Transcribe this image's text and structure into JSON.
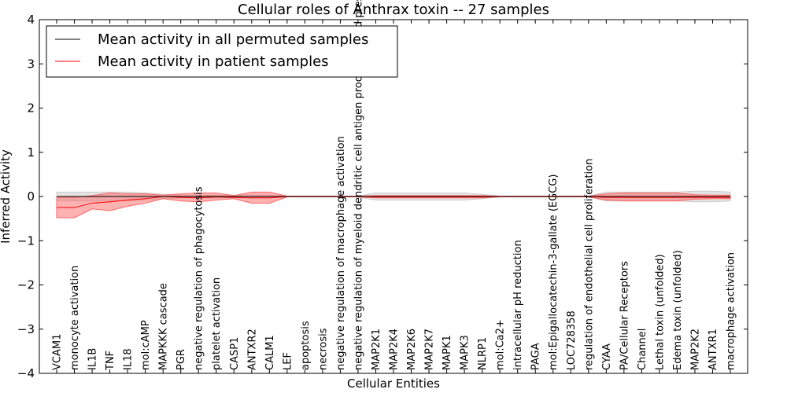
{
  "chart_data": {
    "type": "line",
    "title": "Cellular roles of Anthrax toxin -- 27 samples",
    "xlabel": "Cellular Entities",
    "ylabel": "Inferred Activity",
    "ylim": [
      -4,
      4
    ],
    "yticks": [
      "−4",
      "−3",
      "−2",
      "−1",
      "0",
      "1",
      "2",
      "3",
      "4"
    ],
    "grid": false,
    "legend_position": "top-left",
    "categories": [
      "VCAM1",
      "monocyte activation",
      "IL1B",
      "TNF",
      "IL18",
      "mol:cAMP",
      "MAPKKK cascade",
      "PGR",
      "negative regulation of phagocytosis",
      "platelet activation",
      "CASP1",
      "ANTXR2",
      "CALM1",
      "LEF",
      "apoptosis",
      "necrosis",
      "negative regulation of macrophage activation",
      "negative regulation of myeloid dendritic cell antigen processing and presentation",
      "MAP2K1",
      "MAP2K4",
      "MAP2K6",
      "MAP2K7",
      "MAPK1",
      "MAPK3",
      "NLRP1",
      "mol:Ca2+",
      "intracellular pH reduction",
      "PAGA",
      "mol:Epigallocatechin-3-gallate (EGCG)",
      "LOC728358",
      "regulation of endothelial cell proliferation",
      "CYAA",
      "PA/Cellular Receptors",
      "Channel",
      "Lethal toxin (unfolded)",
      "Edema toxin (unfolded)",
      "MAP2K2",
      "ANTXR1",
      "macrophage activation"
    ],
    "series": [
      {
        "name": "Mean activity in all permuted samples",
        "color": "#000000",
        "band_color": "#cccccc",
        "values": [
          0,
          0,
          0,
          0,
          0,
          0,
          0,
          0,
          0,
          0,
          0,
          0,
          0,
          0,
          0,
          0,
          0,
          0,
          0,
          0,
          0,
          0,
          0,
          0,
          0,
          0,
          0,
          0,
          0,
          0,
          0,
          0,
          0,
          0,
          0,
          0,
          0,
          0,
          0
        ],
        "lower": [
          -0.1,
          -0.1,
          -0.1,
          -0.1,
          -0.1,
          -0.08,
          -0.05,
          -0.03,
          -0.03,
          -0.03,
          -0.03,
          -0.03,
          -0.03,
          -0.01,
          -0.01,
          -0.01,
          -0.01,
          -0.01,
          -0.08,
          -0.08,
          -0.08,
          -0.08,
          -0.08,
          -0.08,
          -0.05,
          -0.01,
          -0.01,
          -0.01,
          -0.01,
          -0.01,
          -0.01,
          -0.1,
          -0.1,
          -0.1,
          -0.1,
          -0.1,
          -0.12,
          -0.12,
          -0.1
        ],
        "upper": [
          0.1,
          0.1,
          0.1,
          0.1,
          0.1,
          0.08,
          0.05,
          0.03,
          0.03,
          0.03,
          0.03,
          0.03,
          0.03,
          0.01,
          0.01,
          0.01,
          0.01,
          0.01,
          0.08,
          0.08,
          0.08,
          0.08,
          0.08,
          0.08,
          0.05,
          0.01,
          0.01,
          0.01,
          0.01,
          0.01,
          0.01,
          0.1,
          0.1,
          0.1,
          0.1,
          0.1,
          0.12,
          0.12,
          0.1
        ]
      },
      {
        "name": "Mean activity in patient samples",
        "color": "#ff0000",
        "band_color": "#ff6666",
        "values": [
          -0.25,
          -0.25,
          -0.15,
          -0.12,
          -0.08,
          -0.05,
          0,
          -0.02,
          -0.03,
          -0.01,
          -0.02,
          -0.03,
          -0.03,
          0,
          0,
          0,
          0,
          0,
          -0.01,
          -0.01,
          -0.01,
          -0.01,
          -0.01,
          -0.01,
          -0.01,
          0,
          0,
          0,
          0,
          0,
          0,
          -0.02,
          -0.02,
          -0.02,
          -0.02,
          -0.02,
          -0.02,
          -0.02,
          -0.02
        ],
        "lower": [
          -0.48,
          -0.48,
          -0.28,
          -0.32,
          -0.22,
          -0.15,
          -0.05,
          -0.1,
          -0.12,
          -0.08,
          -0.05,
          -0.15,
          -0.15,
          -0.01,
          -0.01,
          -0.01,
          -0.01,
          -0.01,
          -0.03,
          -0.03,
          -0.03,
          -0.03,
          -0.03,
          -0.03,
          -0.03,
          -0.01,
          -0.01,
          -0.01,
          -0.01,
          -0.01,
          -0.01,
          -0.08,
          -0.1,
          -0.1,
          -0.1,
          -0.1,
          -0.06,
          -0.05,
          -0.05
        ],
        "upper": [
          -0.02,
          -0.02,
          0.02,
          0.08,
          0.06,
          0.06,
          0.03,
          0.06,
          0.08,
          0.08,
          0.02,
          0.1,
          0.1,
          0.01,
          0.01,
          0.01,
          0.01,
          0.01,
          0.02,
          0.02,
          0.02,
          0.02,
          0.02,
          0.02,
          0.02,
          0.01,
          0.01,
          0.01,
          0.01,
          0.01,
          0.01,
          0.06,
          0.08,
          0.08,
          0.08,
          0.08,
          0.04,
          0.03,
          0.03
        ]
      }
    ]
  }
}
